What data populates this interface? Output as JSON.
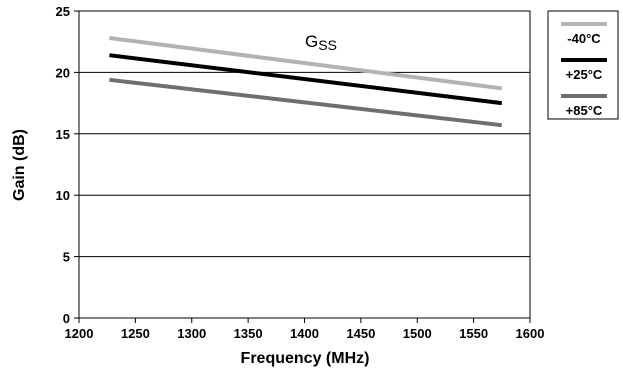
{
  "chart_data": {
    "type": "line",
    "title": "",
    "annotation": "G",
    "annotation_subscript": "SS",
    "xlabel": "Frequency (MHz)",
    "ylabel": "Gain (dB)",
    "xlim": [
      1200,
      1600
    ],
    "ylim": [
      0,
      25
    ],
    "xticks": [
      "1200",
      "1250",
      "1300",
      "1350",
      "1400",
      "1450",
      "1500",
      "1550",
      "1600"
    ],
    "yticks": [
      "0",
      "5",
      "10",
      "15",
      "20",
      "25"
    ],
    "grid": "horizontal",
    "legend_position": "top-right, outside plot",
    "series": [
      {
        "name": "-40°C",
        "color": "#b3b3b3",
        "x": [
          1227,
          1575
        ],
        "y": [
          22.8,
          18.7
        ]
      },
      {
        "name": "+25°C",
        "color": "#000000",
        "x": [
          1227,
          1575
        ],
        "y": [
          21.4,
          17.5
        ]
      },
      {
        "name": "+85°C",
        "color": "#6f6f6f",
        "x": [
          1227,
          1575
        ],
        "y": [
          19.4,
          15.7
        ]
      }
    ]
  }
}
